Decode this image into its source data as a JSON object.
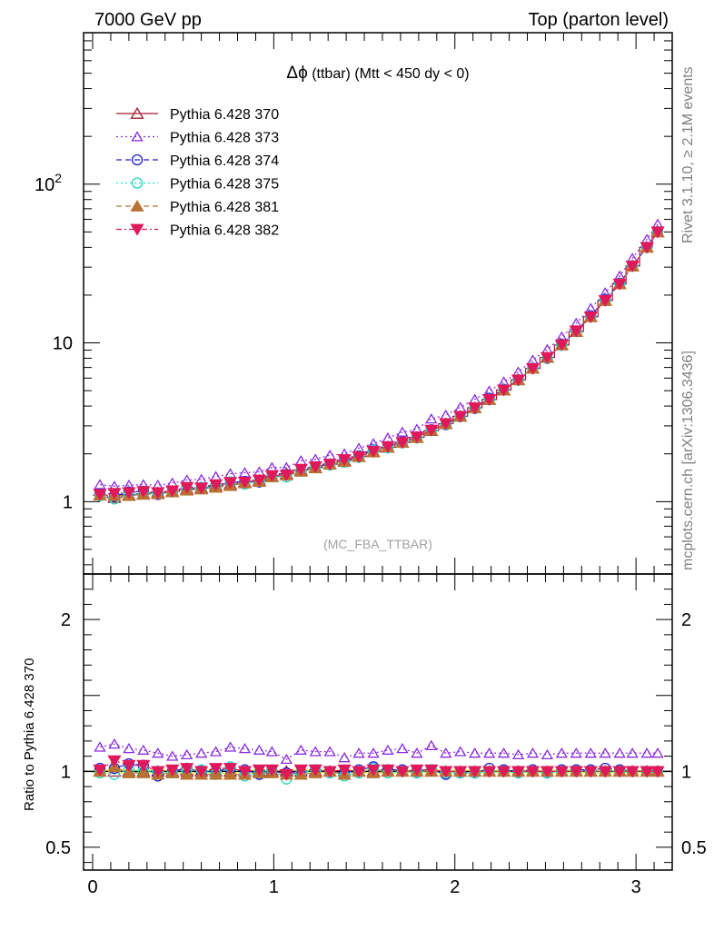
{
  "header": {
    "left": "7000 GeV pp",
    "right": "Top (parton level)"
  },
  "side": {
    "rivet_prefix": "Rivet 3.1.10, ",
    "rivet_suffix": " 2.1M events",
    "geq_symbol": "≥",
    "mcplots": "mcplots.cern.ch [arXiv:1306.3436]"
  },
  "chart_data": {
    "type": "line",
    "title_symbol": "Δϕ",
    "title_rest": " (ttbar) (Mtt < 450 dy < 0)",
    "watermark": "(MC_FBA_TTBAR)",
    "main": {
      "yscale": "log",
      "ylim": [
        0.35,
        900
      ],
      "yticks": [
        {
          "value": 1,
          "base": "1",
          "exp": ""
        },
        {
          "value": 10,
          "base": "10",
          "exp": ""
        },
        {
          "value": 100,
          "base": "10",
          "exp": "2"
        }
      ]
    },
    "ratio": {
      "ylabel": "Ratio to Pythia 6.428 370",
      "ylim": [
        0.35,
        2.3
      ],
      "yticks": [
        {
          "value": 0.5,
          "label": "0.5"
        },
        {
          "value": 1,
          "label": "1"
        },
        {
          "value": 2,
          "label": "2"
        }
      ]
    },
    "x": {
      "xlim": [
        0,
        3.2
      ],
      "ticks": [
        {
          "value": 0,
          "label": "0"
        },
        {
          "value": 1,
          "label": "1"
        },
        {
          "value": 2,
          "label": "2"
        },
        {
          "value": 3,
          "label": "3"
        }
      ],
      "centers": [
        0.04,
        0.12,
        0.2,
        0.28,
        0.36,
        0.44,
        0.52,
        0.6,
        0.68,
        0.76,
        0.84,
        0.92,
        0.99,
        1.07,
        1.15,
        1.23,
        1.31,
        1.39,
        1.47,
        1.55,
        1.63,
        1.71,
        1.79,
        1.87,
        1.95,
        2.03,
        2.11,
        2.19,
        2.27,
        2.35,
        2.43,
        2.51,
        2.59,
        2.67,
        2.75,
        2.83,
        2.91,
        2.98,
        3.06,
        3.12
      ]
    },
    "series": [
      {
        "name": "Pythia 6.428 370",
        "color": "#a51c30",
        "marker": "triangle-open",
        "dash": "none",
        "values": [
          1.1,
          1.06,
          1.1,
          1.12,
          1.14,
          1.16,
          1.2,
          1.22,
          1.26,
          1.29,
          1.33,
          1.36,
          1.44,
          1.5,
          1.58,
          1.64,
          1.72,
          1.82,
          1.92,
          2.06,
          2.2,
          2.36,
          2.54,
          2.8,
          3.1,
          3.45,
          3.9,
          4.4,
          5.05,
          5.85,
          6.9,
          8.1,
          9.7,
          11.8,
          14.6,
          18.5,
          23.5,
          30.5,
          40.0,
          50.0
        ],
        "ratio": [
          1.0,
          1.0,
          1.0,
          1.0,
          1.0,
          1.0,
          1.0,
          1.0,
          1.0,
          1.0,
          1.0,
          1.0,
          1.0,
          1.0,
          1.0,
          1.0,
          1.0,
          1.0,
          1.0,
          1.0,
          1.0,
          1.0,
          1.0,
          1.0,
          1.0,
          1.0,
          1.0,
          1.0,
          1.0,
          1.0,
          1.0,
          1.0,
          1.0,
          1.0,
          1.0,
          1.0,
          1.0,
          1.0,
          1.0,
          1.0
        ]
      },
      {
        "name": "Pythia 6.428 373",
        "color": "#8a2be2",
        "marker": "triangle-open-small",
        "dash": "2,3",
        "values": [
          1.28,
          1.25,
          1.27,
          1.28,
          1.27,
          1.31,
          1.37,
          1.38,
          1.44,
          1.5,
          1.52,
          1.54,
          1.64,
          1.64,
          1.81,
          1.85,
          1.96,
          2.0,
          2.17,
          2.32,
          2.52,
          2.74,
          2.86,
          3.32,
          3.51,
          3.92,
          4.41,
          4.98,
          5.68,
          6.55,
          7.79,
          9.09,
          10.9,
          13.3,
          16.5,
          20.7,
          26.4,
          34.1,
          44.9,
          56.0
        ],
        "ratio": [
          1.16,
          1.18,
          1.15,
          1.14,
          1.12,
          1.1,
          1.11,
          1.12,
          1.13,
          1.16,
          1.15,
          1.14,
          1.13,
          1.08,
          1.14,
          1.13,
          1.13,
          1.09,
          1.12,
          1.12,
          1.14,
          1.15,
          1.12,
          1.17,
          1.12,
          1.13,
          1.12,
          1.12,
          1.12,
          1.11,
          1.12,
          1.11,
          1.12,
          1.12,
          1.12,
          1.12,
          1.12,
          1.12,
          1.12,
          1.12
        ]
      },
      {
        "name": "Pythia 6.428 374",
        "color": "#1f1fd6",
        "marker": "circle-open",
        "dash": "6,4",
        "values": [
          1.12,
          1.08,
          1.15,
          1.16,
          1.11,
          1.16,
          1.22,
          1.22,
          1.26,
          1.32,
          1.34,
          1.33,
          1.44,
          1.48,
          1.56,
          1.66,
          1.72,
          1.8,
          1.94,
          2.12,
          2.22,
          2.38,
          2.54,
          2.84,
          3.05,
          3.43,
          3.86,
          4.48,
          5.1,
          5.86,
          6.94,
          8.0,
          9.82,
          11.9,
          14.8,
          18.8,
          23.8,
          30.6,
          40.1,
          50.2
        ],
        "ratio": [
          1.02,
          1.02,
          1.05,
          1.04,
          0.97,
          1.0,
          1.02,
          1.0,
          1.0,
          1.02,
          1.01,
          0.98,
          1.0,
          0.99,
          0.99,
          1.01,
          1.0,
          0.99,
          1.01,
          1.03,
          1.01,
          1.01,
          1.0,
          1.01,
          0.98,
          0.99,
          0.99,
          1.02,
          1.01,
          1.0,
          1.01,
          0.99,
          1.01,
          1.01,
          1.01,
          1.02,
          1.01,
          1.0,
          1.0,
          1.0
        ]
      },
      {
        "name": "Pythia 6.428 375",
        "color": "#20d8c8",
        "marker": "circle-open",
        "dash": "2,3",
        "values": [
          1.09,
          1.04,
          1.11,
          1.12,
          1.14,
          1.15,
          1.21,
          1.23,
          1.24,
          1.33,
          1.29,
          1.35,
          1.45,
          1.43,
          1.57,
          1.65,
          1.7,
          1.77,
          1.9,
          2.11,
          2.18,
          2.35,
          2.52,
          2.82,
          3.06,
          3.43,
          3.88,
          4.39,
          5.06,
          5.82,
          6.93,
          8.04,
          9.69,
          11.8,
          14.6,
          18.5,
          23.6,
          30.4,
          40.0,
          50.1
        ],
        "ratio": [
          0.99,
          0.98,
          1.01,
          1.0,
          1.0,
          0.99,
          1.01,
          1.01,
          0.98,
          1.03,
          0.97,
          0.99,
          1.01,
          0.95,
          0.99,
          1.01,
          0.99,
          0.97,
          0.99,
          1.02,
          0.99,
          1.0,
          0.99,
          1.01,
          0.99,
          0.99,
          0.99,
          1.0,
          1.0,
          0.99,
          1.0,
          0.99,
          1.0,
          1.0,
          1.0,
          1.0,
          1.0,
          1.0,
          1.0,
          1.0
        ]
      },
      {
        "name": "Pythia 6.428 381",
        "color": "#b87333",
        "marker": "triangle-filled",
        "dash": "6,4",
        "values": [
          1.1,
          1.09,
          1.09,
          1.11,
          1.12,
          1.15,
          1.18,
          1.2,
          1.23,
          1.26,
          1.31,
          1.34,
          1.43,
          1.47,
          1.55,
          1.63,
          1.72,
          1.79,
          1.92,
          2.05,
          2.21,
          2.36,
          2.53,
          2.81,
          3.09,
          3.44,
          3.89,
          4.4,
          5.03,
          5.85,
          6.91,
          8.1,
          9.72,
          11.8,
          14.6,
          18.5,
          23.5,
          30.4,
          40.0,
          50.0
        ],
        "ratio": [
          1.0,
          1.03,
          0.99,
          0.99,
          0.98,
          0.99,
          0.98,
          0.98,
          0.98,
          0.98,
          0.98,
          0.99,
          0.99,
          0.98,
          0.98,
          0.99,
          1.0,
          0.98,
          1.0,
          0.99,
          1.0,
          1.0,
          1.0,
          1.0,
          1.0,
          1.0,
          1.0,
          1.0,
          1.0,
          1.0,
          1.0,
          1.0,
          1.0,
          1.0,
          1.0,
          1.0,
          1.0,
          1.0,
          1.0,
          1.0
        ]
      },
      {
        "name": "Pythia 6.428 382",
        "color": "#e0195a",
        "marker": "triangle-down-filled",
        "dash": "6,3,2,3",
        "values": [
          1.11,
          1.13,
          1.14,
          1.16,
          1.14,
          1.17,
          1.23,
          1.22,
          1.28,
          1.32,
          1.33,
          1.37,
          1.46,
          1.47,
          1.6,
          1.66,
          1.72,
          1.84,
          1.92,
          2.08,
          2.22,
          2.36,
          2.56,
          2.82,
          3.1,
          3.45,
          3.9,
          4.4,
          5.05,
          5.84,
          6.9,
          8.1,
          9.74,
          11.9,
          14.6,
          18.5,
          23.5,
          30.5,
          40.0,
          50.0
        ],
        "ratio": [
          1.01,
          1.07,
          1.04,
          1.04,
          1.0,
          1.01,
          1.02,
          1.0,
          1.02,
          1.02,
          1.0,
          1.01,
          1.01,
          0.98,
          1.01,
          1.01,
          1.0,
          1.01,
          1.0,
          1.01,
          1.01,
          1.0,
          1.01,
          1.01,
          1.0,
          1.0,
          1.0,
          1.0,
          1.0,
          1.0,
          1.0,
          1.0,
          1.0,
          1.0,
          1.0,
          1.0,
          1.0,
          1.0,
          1.0,
          1.0
        ]
      }
    ]
  }
}
